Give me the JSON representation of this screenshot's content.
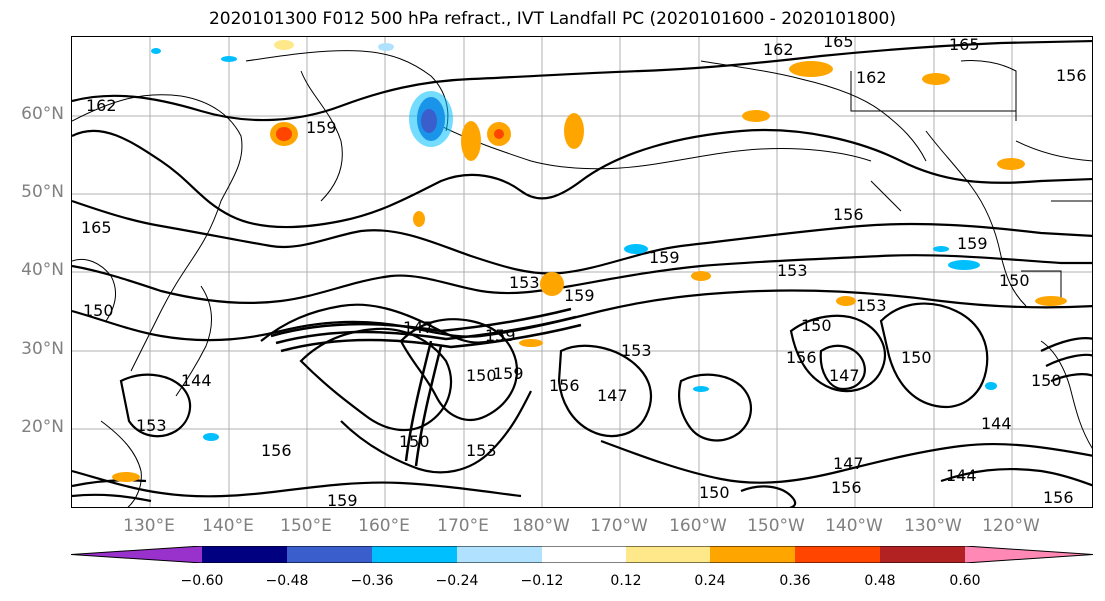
{
  "title": "2020101300 F012 500 hPa refract., IVT Landfall PC (2020101600 - 2020101800)",
  "lat_labels": [
    "60°N",
    "50°N",
    "40°N",
    "30°N",
    "20°N"
  ],
  "lon_labels": [
    "130°E",
    "140°E",
    "150°E",
    "160°E",
    "170°E",
    "180°W",
    "170°W",
    "160°W",
    "150°W",
    "140°W",
    "130°W",
    "120°W"
  ],
  "contour_labels": [
    "162",
    "165",
    "165",
    "162",
    "156",
    "159",
    "165",
    "156",
    "159",
    "153",
    "150",
    "153",
    "159",
    "159",
    "153",
    "150",
    "153",
    "156",
    "150",
    "147",
    "147",
    "159",
    "150",
    "147",
    "144",
    "156",
    "153",
    "150",
    "159",
    "156",
    "144",
    "150",
    "147",
    "156",
    "144",
    "150",
    "156",
    "159",
    "153",
    "162",
    "150"
  ],
  "colorbar": {
    "colors": [
      "#9932cc",
      "#000080",
      "#3a5fcd",
      "#00bfff",
      "#b0e2ff",
      "#ffffff",
      "#ffe88a",
      "#ffa500",
      "#ff4500",
      "#b22222",
      "#ff88b4"
    ],
    "ticks": [
      "−0.60",
      "−0.48",
      "−0.36",
      "−0.24",
      "−0.12",
      "0.12",
      "0.24",
      "0.36",
      "0.48",
      "0.60"
    ]
  }
}
